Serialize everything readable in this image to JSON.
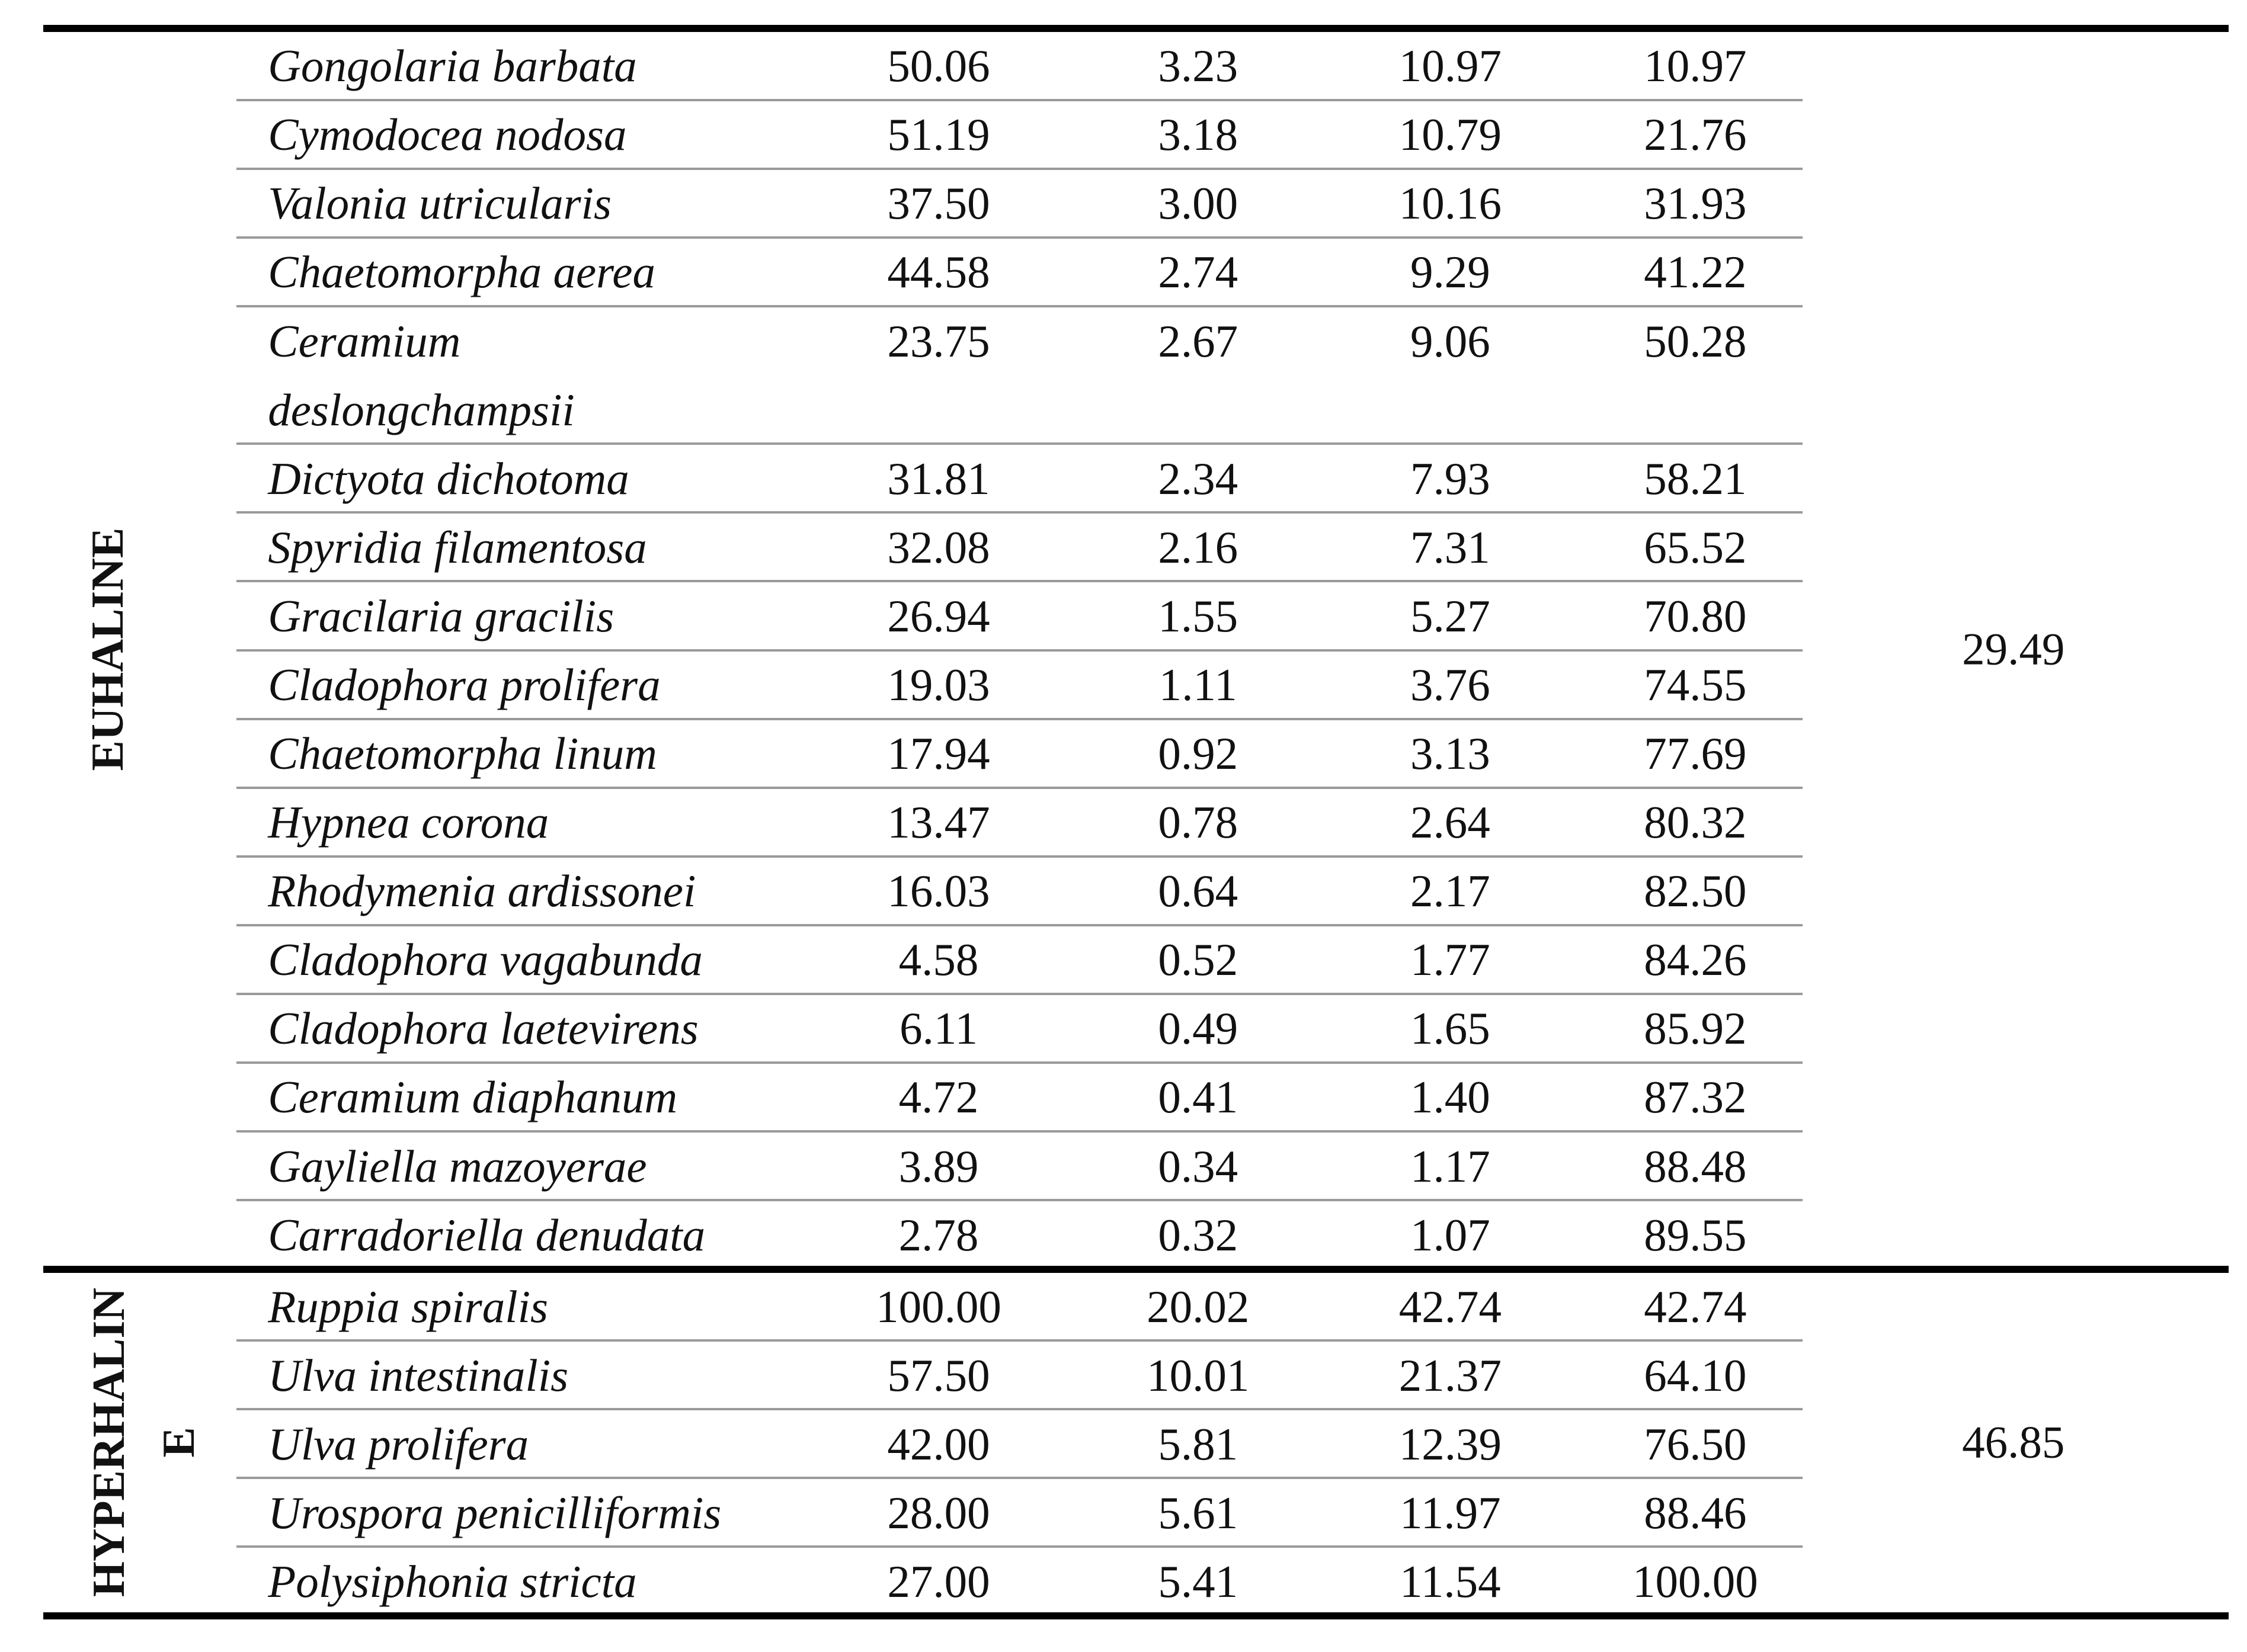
{
  "table": {
    "groups": [
      {
        "label": "EUHALINE",
        "value": "29.49",
        "rows": [
          {
            "species": "Gongolaria barbata",
            "values": [
              "50.06",
              "3.23",
              "10.97",
              "10.97"
            ]
          },
          {
            "species": "Cymodocea nodosa",
            "values": [
              "51.19",
              "3.18",
              "10.79",
              "21.76"
            ]
          },
          {
            "species": "Valonia utricularis",
            "values": [
              "37.50",
              "3.00",
              "10.16",
              "31.93"
            ]
          },
          {
            "species": "Chaetomorpha aerea",
            "values": [
              "44.58",
              "2.74",
              "9.29",
              "41.22"
            ]
          },
          {
            "species": "Ceramium deslongchampsii",
            "values": [
              "23.75",
              "2.67",
              "9.06",
              "50.28"
            ]
          },
          {
            "species": "Dictyota dichotoma",
            "values": [
              "31.81",
              "2.34",
              "7.93",
              "58.21"
            ]
          },
          {
            "species": "Spyridia filamentosa",
            "values": [
              "32.08",
              "2.16",
              "7.31",
              "65.52"
            ]
          },
          {
            "species": "Gracilaria gracilis",
            "values": [
              "26.94",
              "1.55",
              "5.27",
              "70.80"
            ]
          },
          {
            "species": "Cladophora prolifera",
            "values": [
              "19.03",
              "1.11",
              "3.76",
              "74.55"
            ]
          },
          {
            "species": "Chaetomorpha linum",
            "values": [
              "17.94",
              "0.92",
              "3.13",
              "77.69"
            ]
          },
          {
            "species": "Hypnea corona",
            "values": [
              "13.47",
              "0.78",
              "2.64",
              "80.32"
            ]
          },
          {
            "species": "Rhodymenia ardissonei",
            "values": [
              "16.03",
              "0.64",
              "2.17",
              "82.50"
            ]
          },
          {
            "species": "Cladophora vagabunda",
            "values": [
              "4.58",
              "0.52",
              "1.77",
              "84.26"
            ]
          },
          {
            "species": "Cladophora laetevirens",
            "values": [
              "6.11",
              "0.49",
              "1.65",
              "85.92"
            ]
          },
          {
            "species": "Ceramium diaphanum",
            "values": [
              "4.72",
              "0.41",
              "1.40",
              "87.32"
            ]
          },
          {
            "species": "Gayliella mazoyerae",
            "values": [
              "3.89",
              "0.34",
              "1.17",
              "88.48"
            ]
          },
          {
            "species": "Carradoriella denudata",
            "values": [
              "2.78",
              "0.32",
              "1.07",
              "89.55"
            ]
          }
        ]
      },
      {
        "label": "HYPERHALINE",
        "value": "46.85",
        "rows": [
          {
            "species": "Ruppia spiralis",
            "values": [
              "100.00",
              "20.02",
              "42.74",
              "42.74"
            ]
          },
          {
            "species": "Ulva intestinalis",
            "values": [
              "57.50",
              "10.01",
              "21.37",
              "64.10"
            ]
          },
          {
            "species": "Ulva prolifera",
            "values": [
              "42.00",
              "5.81",
              "12.39",
              "76.50"
            ]
          },
          {
            "species": "Urospora penicilliformis",
            "values": [
              "28.00",
              "5.61",
              "11.97",
              "88.46"
            ]
          },
          {
            "species": "Polysiphonia stricta",
            "values": [
              "27.00",
              "5.41",
              "11.54",
              "100.00"
            ]
          }
        ]
      }
    ]
  }
}
